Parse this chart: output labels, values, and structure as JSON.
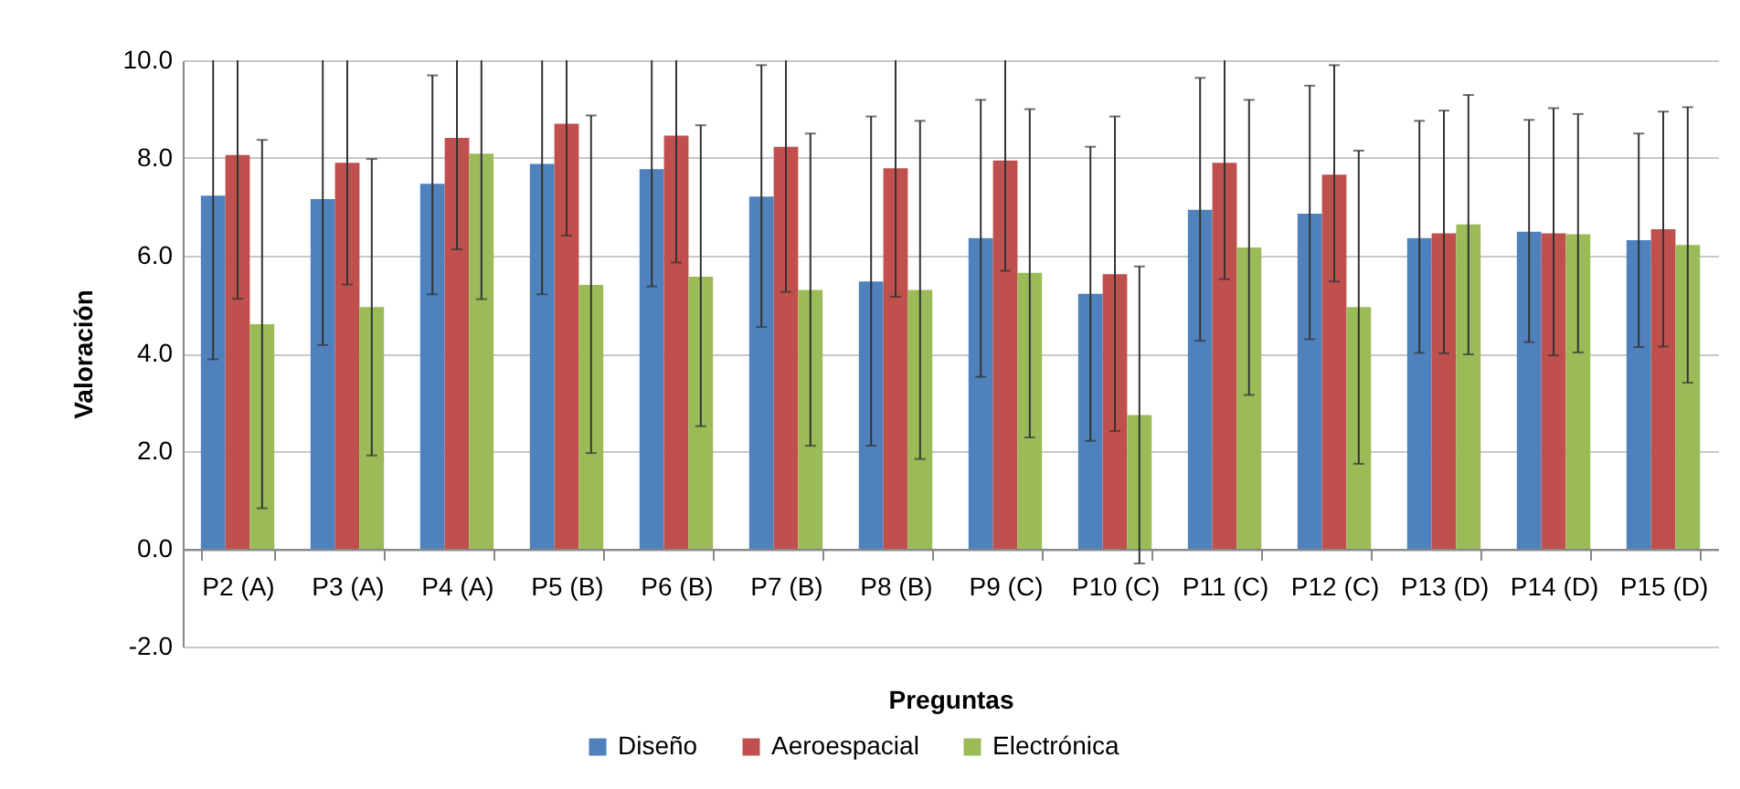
{
  "chart_data": {
    "type": "bar",
    "xlabel": "Preguntas",
    "ylabel": "Valoración",
    "categories": [
      "P2 (A)",
      "P3 (A)",
      "P4 (A)",
      "P5 (B)",
      "P6 (B)",
      "P7 (B)",
      "P8 (B)",
      "P9 (C)",
      "P10 (C)",
      "P11 (C)",
      "P12 (C)",
      "P13 (D)",
      "P14 (D)",
      "P15 (D)"
    ],
    "series": [
      {
        "name": "Diseño",
        "color": "#4f81bd",
        "values": [
          7.23,
          7.16,
          7.47,
          7.88,
          7.77,
          7.21,
          5.47,
          6.36,
          5.22,
          6.94,
          6.86,
          6.36,
          6.49,
          6.32
        ],
        "errors": [
          [
            3.88,
            10
          ],
          [
            4.17,
            10
          ],
          [
            5.21,
            9.69
          ],
          [
            5.21,
            10
          ],
          [
            5.37,
            10
          ],
          [
            4.54,
            9.9
          ],
          [
            2.11,
            8.85
          ],
          [
            3.52,
            9.19
          ],
          [
            2.21,
            8.23
          ],
          [
            4.26,
            9.64
          ],
          [
            4.29,
            9.48
          ],
          [
            4.01,
            8.76
          ],
          [
            4.23,
            8.78
          ],
          [
            4.13,
            8.5
          ]
        ]
      },
      {
        "name": "Aeroespacial",
        "color": "#c0504d",
        "values": [
          8.06,
          7.9,
          8.41,
          8.7,
          8.46,
          8.23,
          7.79,
          7.95,
          5.62,
          7.9,
          7.66,
          6.46,
          6.46,
          6.54
        ],
        "errors": [
          [
            5.12,
            10
          ],
          [
            5.41,
            10
          ],
          [
            6.13,
            10
          ],
          [
            6.41,
            10
          ],
          [
            5.86,
            10
          ],
          [
            5.26,
            10
          ],
          [
            5.16,
            10
          ],
          [
            5.69,
            10
          ],
          [
            2.41,
            8.85
          ],
          [
            5.52,
            10
          ],
          [
            5.47,
            9.9
          ],
          [
            4.0,
            8.97
          ],
          [
            3.96,
            9.02
          ],
          [
            4.14,
            8.95
          ]
        ]
      },
      {
        "name": "Electrónica",
        "color": "#9bbb59",
        "values": [
          4.6,
          4.95,
          8.09,
          5.4,
          5.57,
          5.3,
          5.3,
          5.65,
          2.74,
          6.17,
          4.95,
          6.64,
          6.44,
          6.22
        ],
        "errors": [
          [
            0.83,
            8.37
          ],
          [
            1.91,
            7.98
          ],
          [
            5.11,
            10
          ],
          [
            1.96,
            8.87
          ],
          [
            2.51,
            8.67
          ],
          [
            2.11,
            8.5
          ],
          [
            1.84,
            8.76
          ],
          [
            2.28,
            9.0
          ],
          [
            -0.3,
            5.78
          ],
          [
            3.15,
            9.19
          ],
          [
            1.74,
            8.15
          ],
          [
            3.98,
            9.29
          ],
          [
            4.02,
            8.9
          ],
          [
            3.4,
            9.04
          ]
        ]
      }
    ],
    "ylim": [
      -2,
      10
    ],
    "yticks": [
      {
        "value": -2,
        "label": "-2.0"
      },
      {
        "value": 0,
        "label": "0.0"
      },
      {
        "value": 2,
        "label": "2.0"
      },
      {
        "value": 4,
        "label": "4.0"
      },
      {
        "value": 6,
        "label": "6.0"
      },
      {
        "value": 8,
        "label": "8.0"
      },
      {
        "value": 10,
        "label": "10.0"
      }
    ],
    "grid": "y",
    "legend": "bottom"
  }
}
